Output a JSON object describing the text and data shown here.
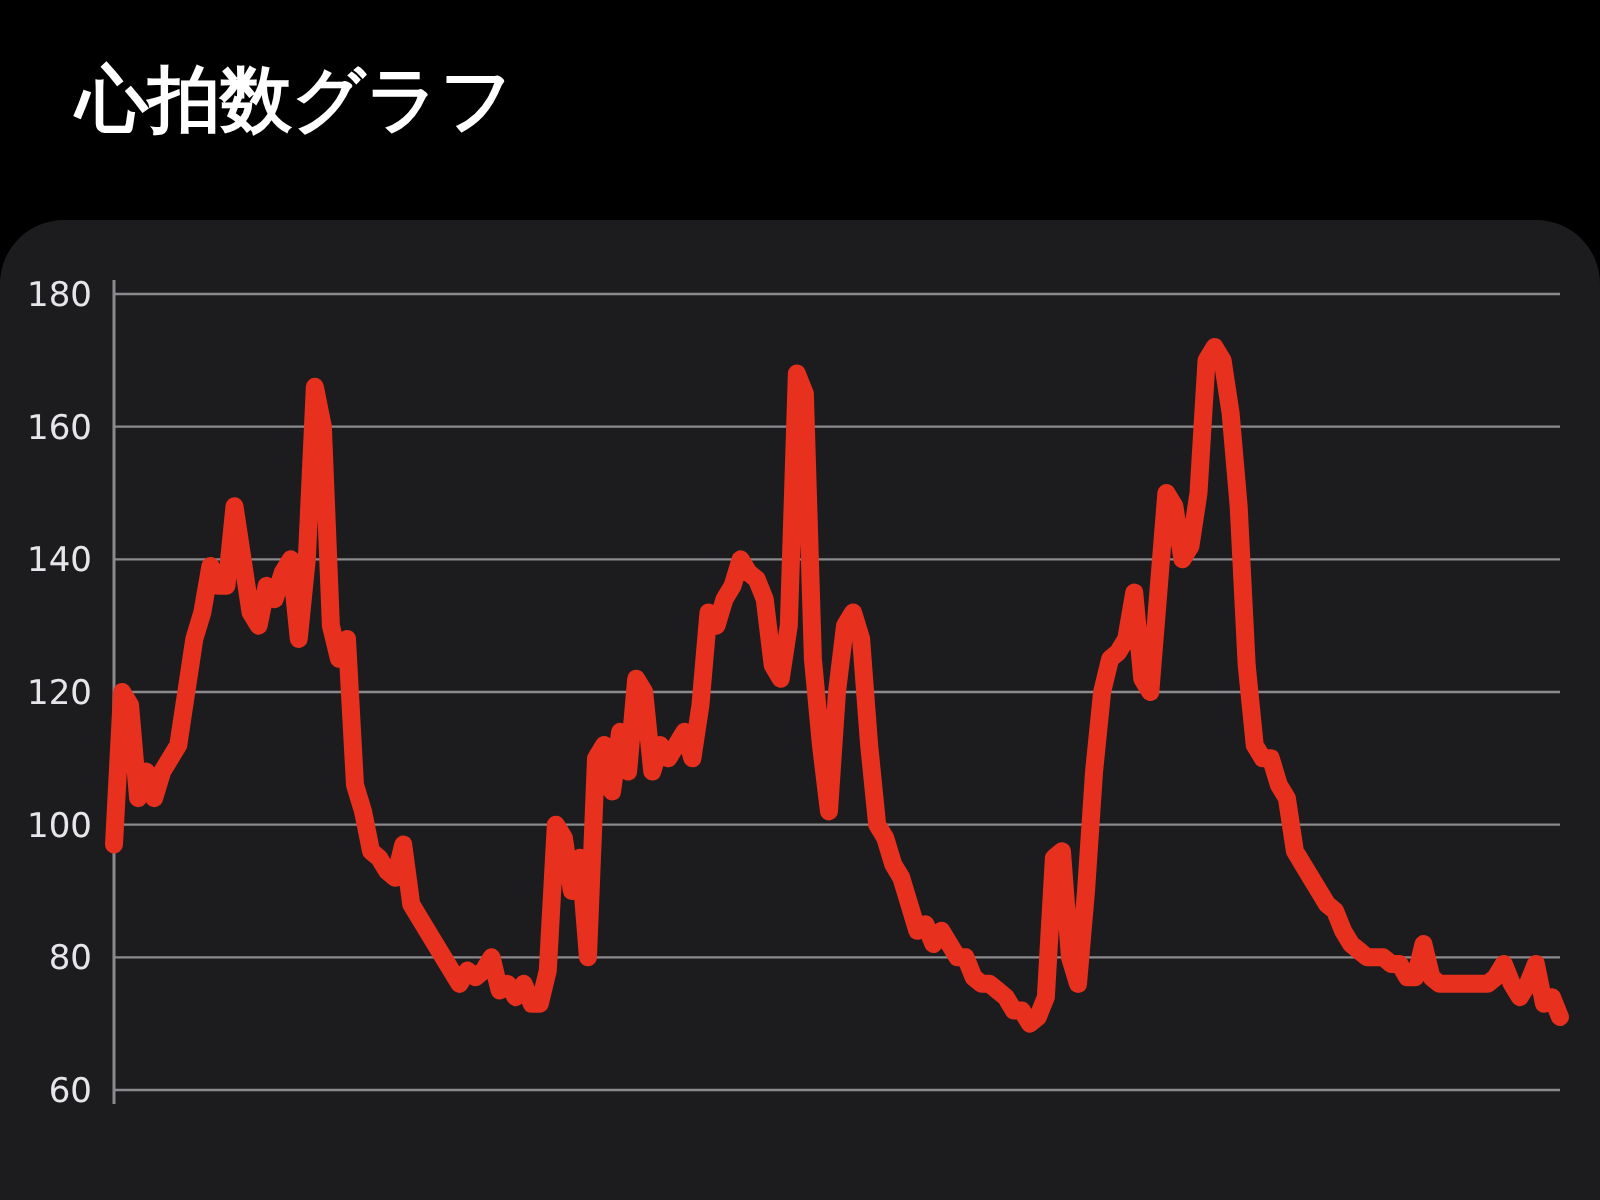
{
  "chart_data": {
    "type": "line",
    "title": "心拍数グラフ",
    "categories": [
      null,
      null,
      null,
      null,
      null,
      null,
      null,
      null,
      null,
      null,
      null,
      null,
      null,
      null,
      null,
      null,
      null,
      null,
      null,
      null,
      null,
      null,
      null,
      null,
      null,
      null,
      null,
      null,
      null,
      null,
      null,
      null,
      null,
      null,
      null,
      null,
      null,
      null,
      null,
      null,
      null,
      null,
      null,
      null,
      null,
      null,
      null,
      null,
      null,
      null,
      null,
      null,
      null,
      null,
      null,
      null,
      null,
      null,
      null,
      null,
      null,
      null,
      null,
      null,
      null,
      null,
      null,
      null,
      null,
      null,
      null,
      null,
      null,
      null,
      null,
      null,
      null,
      null,
      null,
      null,
      null,
      null,
      null,
      null,
      null,
      null,
      null,
      null,
      null,
      null,
      null,
      null,
      null,
      null,
      null,
      null,
      null,
      null,
      null,
      null,
      null,
      null,
      null,
      null,
      null,
      null,
      null,
      null,
      null,
      null,
      null,
      null,
      null,
      null,
      null,
      null,
      null,
      null,
      null,
      null,
      null,
      null,
      null,
      null,
      null,
      null,
      null,
      null,
      null,
      null,
      null,
      null,
      null,
      null,
      null,
      null,
      null,
      null,
      null,
      null,
      null,
      null,
      null,
      null,
      null,
      null,
      null,
      null,
      null,
      null,
      null,
      null,
      null,
      null,
      null,
      null,
      null,
      null,
      null,
      null,
      null,
      null,
      null,
      null,
      null,
      null,
      null,
      null,
      null,
      null,
      null,
      null,
      null,
      null,
      null,
      null,
      null,
      null,
      null,
      null,
      null
    ],
    "series": [
      {
        "color": "#e8301f",
        "values": [
          97,
          120,
          118,
          104,
          108,
          104,
          108,
          110,
          112,
          120,
          128,
          132,
          139,
          136,
          136,
          148,
          140,
          132,
          130,
          136,
          134,
          138,
          140,
          128,
          140,
          166,
          160,
          130,
          125,
          128,
          106,
          102,
          96,
          95,
          93,
          92,
          97,
          88,
          86,
          84,
          82,
          80,
          78,
          76,
          78,
          77,
          78,
          80,
          75,
          76,
          74,
          76,
          73,
          73,
          78,
          100,
          98,
          90,
          95,
          80,
          110,
          112,
          105,
          114,
          108,
          122,
          120,
          108,
          112,
          110,
          112,
          114,
          110,
          118,
          132,
          130,
          134,
          136,
          140,
          138,
          137,
          134,
          124,
          122,
          130,
          168,
          165,
          125,
          112,
          102,
          120,
          130,
          132,
          128,
          112,
          100,
          98,
          94,
          92,
          88,
          84,
          85,
          82,
          84,
          82,
          80,
          80,
          77,
          76,
          76,
          75,
          74,
          72,
          72,
          70,
          71,
          74,
          95,
          96,
          80,
          76,
          90,
          108,
          120,
          125,
          126,
          128,
          135,
          122,
          120,
          135,
          150,
          148,
          140,
          142,
          150,
          170,
          172,
          170,
          162,
          148,
          124,
          112,
          110,
          110,
          106,
          104,
          96,
          94,
          92,
          90,
          88,
          87,
          84,
          82,
          81,
          80,
          80,
          80,
          79,
          79,
          77,
          77,
          82,
          77,
          76,
          76,
          76,
          76,
          76,
          76,
          76,
          77,
          79,
          76,
          74,
          76,
          79,
          73,
          74,
          71
        ]
      }
    ],
    "ylim": [
      60,
      180
    ],
    "yticks": [
      60,
      80,
      100,
      120,
      140,
      160,
      180
    ],
    "grid": "y",
    "tick_labels": "y"
  }
}
